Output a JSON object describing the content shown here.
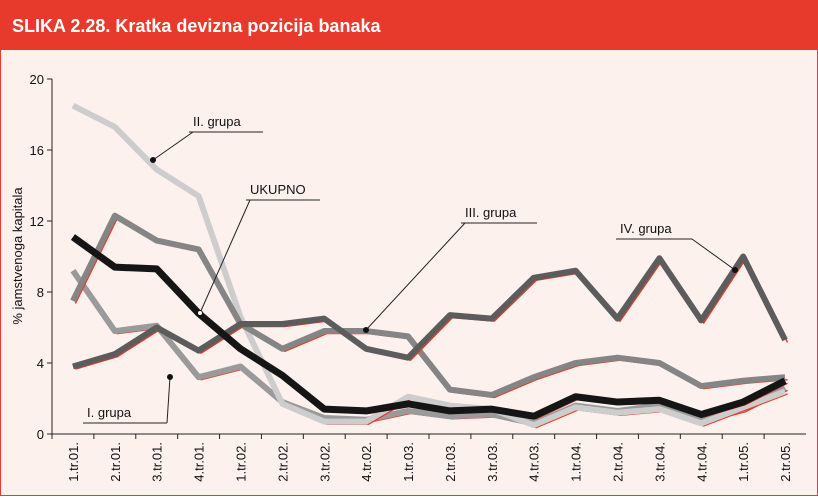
{
  "chart_data": {
    "type": "line",
    "title": "SLIKA 2.28. Kratka devizna pozicija banaka",
    "y_label": "% jamstvenoga kapitala",
    "categories": [
      "1.tr.01.",
      "2.tr.01.",
      "3.tr.01.",
      "4.tr.01.",
      "1.tr.02.",
      "2.tr.02.",
      "3.tr.02.",
      "4.tr.02.",
      "1.tr.03.",
      "2.tr.03.",
      "3.tr.03.",
      "4.tr.03.",
      "1.tr.04.",
      "2.tr.04.",
      "3.tr.04.",
      "4.tr.04.",
      "1.tr.05.",
      "2.tr.05."
    ],
    "series": [
      {
        "name": "I. grupa",
        "color": "#9a9a9a",
        "values": [
          9.2,
          5.8,
          6.1,
          3.2,
          3.8,
          1.8,
          0.9,
          0.8,
          1.3,
          1.0,
          1.1,
          0.6,
          1.6,
          1.3,
          1.6,
          0.8,
          1.4,
          2.6
        ]
      },
      {
        "name": "II. grupa",
        "color": "#cdcdcd",
        "values": [
          18.5,
          17.3,
          14.9,
          13.4,
          6.6,
          1.7,
          0.7,
          0.7,
          2.1,
          1.6,
          1.4,
          0.5,
          1.5,
          1.2,
          1.4,
          0.6,
          1.5,
          2.4
        ]
      },
      {
        "name": "III. grupa",
        "color": "#858585",
        "values": [
          7.5,
          12.3,
          10.9,
          10.4,
          6.2,
          4.8,
          5.8,
          5.8,
          5.5,
          2.5,
          2.2,
          3.2,
          4.0,
          4.3,
          4.0,
          2.7,
          3.0,
          3.2
        ]
      },
      {
        "name": "IV. grupa",
        "color": "#5c5c5c",
        "values": [
          3.8,
          4.5,
          6.0,
          4.7,
          6.2,
          6.2,
          6.5,
          4.8,
          4.3,
          6.7,
          6.5,
          8.8,
          9.2,
          6.5,
          9.9,
          6.4,
          10.0,
          5.3
        ]
      },
      {
        "name": "UKUPNO",
        "color": "#151515",
        "values": [
          11.1,
          9.4,
          9.3,
          6.8,
          4.8,
          3.3,
          1.4,
          1.3,
          1.7,
          1.3,
          1.4,
          1.0,
          2.1,
          1.8,
          1.9,
          1.1,
          1.8,
          3.0
        ]
      }
    ],
    "ylim": [
      0,
      20
    ],
    "yticks": [
      0,
      4,
      8,
      12,
      16,
      20
    ],
    "grid": false
  }
}
